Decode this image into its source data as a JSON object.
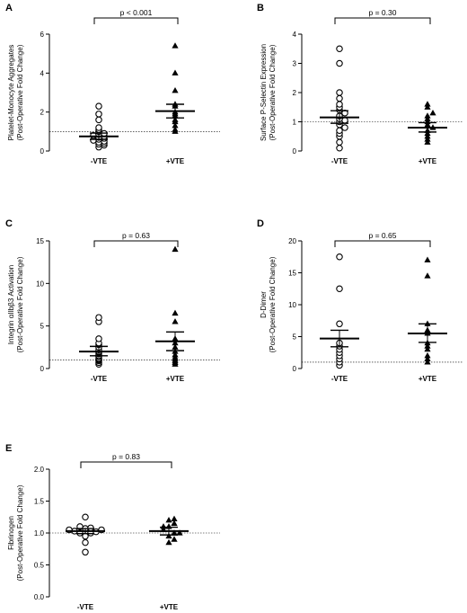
{
  "chart_data": [
    {
      "type": "scatter",
      "panel": "A",
      "ylabel": [
        "Platelet-Monocyte Aggregates",
        "(Post-Operative Fold Change)"
      ],
      "ylim": [
        0,
        6
      ],
      "yticks": [
        "0",
        "2",
        "4",
        "6"
      ],
      "ytick_values": [
        0,
        2,
        4,
        6
      ],
      "baseline": 1,
      "categories": [
        "-VTE",
        "+VTE"
      ],
      "pvalue": "p < 0.001",
      "series": [
        {
          "category": "-VTE",
          "marker": "circle",
          "values": [
            0.2,
            0.3,
            0.35,
            0.4,
            0.45,
            0.5,
            0.55,
            0.6,
            0.65,
            0.7,
            0.75,
            0.8,
            0.85,
            0.9,
            1.0,
            1.1,
            1.2,
            1.6,
            1.9,
            2.3
          ],
          "mean": 0.75,
          "sem_low": 0.6,
          "sem_high": 0.92
        },
        {
          "category": "+VTE",
          "marker": "triangle",
          "values": [
            1.0,
            1.1,
            1.3,
            1.5,
            1.6,
            1.8,
            1.9,
            2.0,
            2.3,
            2.4,
            3.1,
            4.0,
            5.4
          ],
          "mean": 2.05,
          "sem_low": 1.7,
          "sem_high": 2.4
        }
      ]
    },
    {
      "type": "scatter",
      "panel": "B",
      "ylabel": [
        "Surface P-Selectin Expression",
        "(Post-Operative Fold Change)"
      ],
      "ylim": [
        0,
        4
      ],
      "yticks": [
        "0",
        "1",
        "2",
        "3",
        "4"
      ],
      "ytick_values": [
        0,
        1,
        2,
        3,
        4
      ],
      "baseline": 1,
      "categories": [
        "-VTE",
        "+VTE"
      ],
      "pvalue": "p = 0.30",
      "series": [
        {
          "category": "-VTE",
          "marker": "circle",
          "values": [
            0.1,
            0.3,
            0.5,
            0.6,
            0.7,
            0.8,
            0.9,
            1.0,
            1.05,
            1.1,
            1.2,
            1.3,
            1.4,
            1.5,
            1.6,
            1.8,
            2.0,
            3.0,
            3.5
          ],
          "mean": 1.15,
          "sem_low": 0.95,
          "sem_high": 1.38
        },
        {
          "category": "+VTE",
          "marker": "triangle",
          "values": [
            0.3,
            0.4,
            0.5,
            0.6,
            0.7,
            0.8,
            0.9,
            1.0,
            1.1,
            1.2,
            1.3,
            1.5,
            1.6
          ],
          "mean": 0.8,
          "sem_low": 0.65,
          "sem_high": 0.97
        }
      ]
    },
    {
      "type": "scatter",
      "panel": "C",
      "ylabel": [
        "Integrin αIIbβ3 Activation",
        "(Post-Operative Fold Change)"
      ],
      "ylim": [
        0,
        15
      ],
      "yticks": [
        "0",
        "5",
        "10",
        "15"
      ],
      "ytick_values": [
        0,
        5,
        10,
        15
      ],
      "baseline": 1,
      "categories": [
        "-VTE",
        "+VTE"
      ],
      "pvalue": "p = 0.63",
      "series": [
        {
          "category": "-VTE",
          "marker": "circle",
          "values": [
            0.5,
            0.7,
            0.9,
            1.0,
            1.1,
            1.2,
            1.4,
            1.5,
            1.7,
            1.9,
            2.0,
            2.2,
            2.5,
            2.8,
            3.0,
            3.5,
            5.5,
            6.0
          ],
          "mean": 2.0,
          "sem_low": 1.5,
          "sem_high": 2.6
        },
        {
          "category": "+VTE",
          "marker": "triangle",
          "values": [
            0.5,
            0.7,
            0.9,
            1.1,
            1.3,
            1.6,
            2.0,
            2.5,
            3.0,
            3.5,
            5.5,
            6.5,
            14.0
          ],
          "mean": 3.2,
          "sem_low": 2.1,
          "sem_high": 4.3
        }
      ]
    },
    {
      "type": "scatter",
      "panel": "D",
      "ylabel": [
        "D-Dimer",
        "(Post-Operative Fold Change)"
      ],
      "ylim": [
        0,
        20
      ],
      "yticks": [
        "0",
        "5",
        "10",
        "15",
        "20"
      ],
      "ytick_values": [
        0,
        5,
        10,
        15,
        20
      ],
      "baseline": 1,
      "categories": [
        "-VTE",
        "+VTE"
      ],
      "pvalue": "p = 0.65",
      "series": [
        {
          "category": "-VTE",
          "marker": "circle",
          "values": [
            0.5,
            1.0,
            1.5,
            2.0,
            2.5,
            3.0,
            3.5,
            4.0,
            7.0,
            12.5,
            17.5
          ],
          "mean": 4.7,
          "sem_low": 3.4,
          "sem_high": 6.0
        },
        {
          "category": "+VTE",
          "marker": "triangle",
          "values": [
            1.0,
            1.5,
            2.0,
            3.0,
            3.5,
            4.0,
            5.5,
            6.0,
            7.0,
            14.5,
            17.0
          ],
          "mean": 5.5,
          "sem_low": 4.1,
          "sem_high": 7.0
        }
      ]
    },
    {
      "type": "scatter",
      "panel": "E",
      "ylabel": [
        "Fibrinogen",
        "(Post-Operative Fold Change)"
      ],
      "ylim": [
        0,
        2
      ],
      "yticks": [
        "0.0",
        "0.5",
        "1.0",
        "1.5",
        "2.0"
      ],
      "ytick_values": [
        0,
        0.5,
        1.0,
        1.5,
        2.0
      ],
      "baseline": 1,
      "categories": [
        "-VTE",
        "+VTE"
      ],
      "pvalue": "p = 0.83",
      "series": [
        {
          "category": "-VTE",
          "marker": "circle",
          "values": [
            0.7,
            0.85,
            0.95,
            1.0,
            1.0,
            1.02,
            1.03,
            1.05,
            1.05,
            1.07,
            1.08,
            1.1,
            1.25
          ],
          "mean": 1.03,
          "sem_low": 0.99,
          "sem_high": 1.07
        },
        {
          "category": "+VTE",
          "marker": "triangle",
          "values": [
            0.85,
            0.9,
            0.95,
            1.0,
            1.05,
            1.1,
            1.15,
            1.2,
            1.22,
            1.0,
            1.1
          ],
          "mean": 1.03,
          "sem_low": 0.97,
          "sem_high": 1.09
        }
      ]
    }
  ]
}
